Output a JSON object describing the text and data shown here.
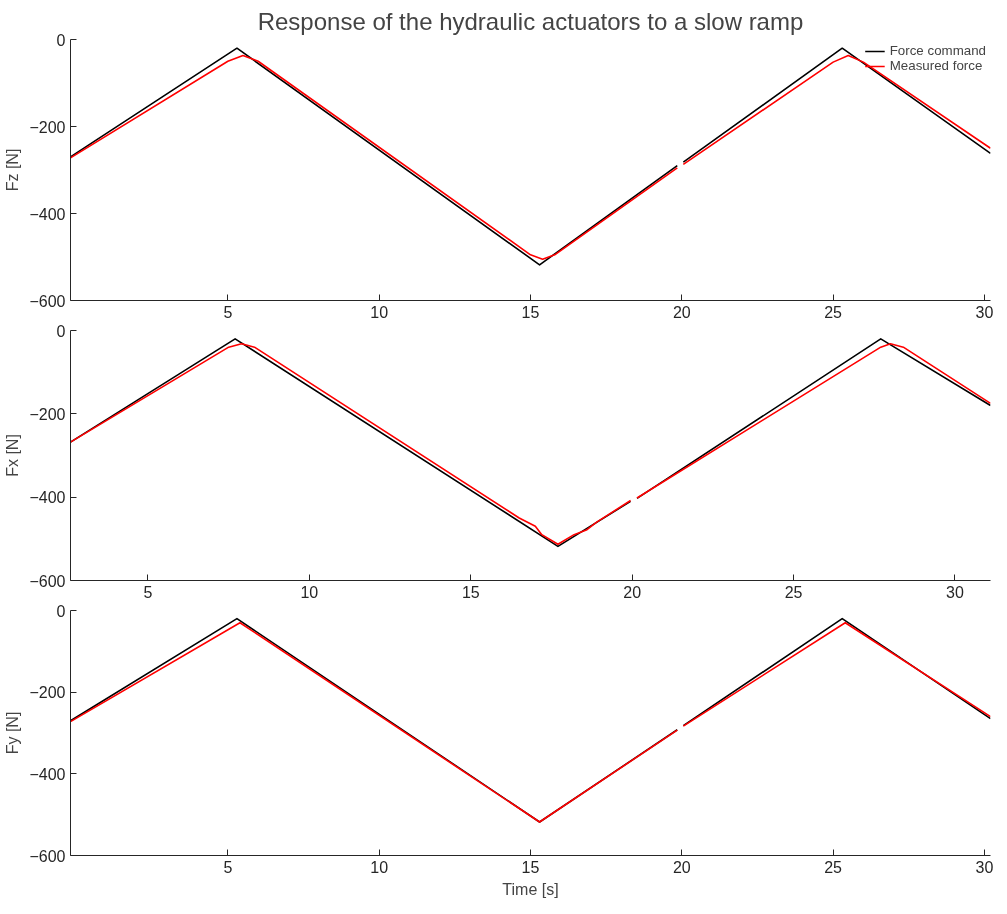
{
  "chart_data": [
    {
      "type": "line",
      "title": "Response of the hydraulic actuators to a slow ramp",
      "ylabel": "Fz [N]",
      "legend": "top right",
      "grid": false,
      "line_style": "solid",
      "xlim": [
        -0.2,
        30.2
      ],
      "ylim": [
        -600,
        0
      ],
      "xticks": [
        5,
        10,
        15,
        20,
        25,
        30
      ],
      "yticks": [
        -600,
        -400,
        -200,
        0
      ],
      "series": [
        {
          "name": "Force command",
          "color": "#000000",
          "x": [
            -0.2,
            5.3,
            15.3,
            19.85,
            19.95,
            20.05,
            25.3,
            30.2
          ],
          "values": [
            -270,
            -20,
            -518,
            -290,
            null,
            -282,
            -20,
            -262
          ]
        },
        {
          "name": "Measured force",
          "color": "#ff0000",
          "x": [
            -0.2,
            5.0,
            5.5,
            6.0,
            15.0,
            15.4,
            15.8,
            19.85,
            19.95,
            20.05,
            25.0,
            25.5,
            26.0,
            30.2
          ],
          "values": [
            -272,
            -50,
            -37,
            -50,
            -495,
            -505,
            -495,
            -295,
            null,
            -287,
            -52,
            -37,
            -52,
            -250
          ]
        }
      ]
    },
    {
      "type": "line",
      "ylabel": "Fx [N]",
      "grid": false,
      "line_style": "solid",
      "xlim": [
        2.6,
        31.1
      ],
      "ylim": [
        -600,
        0
      ],
      "xticks": [
        5,
        10,
        15,
        20,
        25,
        30
      ],
      "yticks": [
        -600,
        -400,
        -200,
        0
      ],
      "series": [
        {
          "color": "#000000",
          "x": [
            2.6,
            7.7,
            17.7,
            19.95,
            20.05,
            20.15,
            27.7,
            31.1
          ],
          "values": [
            -268,
            -20,
            -518,
            -410,
            null,
            -403,
            -20,
            -180
          ]
        },
        {
          "color": "#ff0000",
          "x": [
            2.6,
            7.5,
            7.9,
            8.3,
            16.5,
            17.0,
            17.2,
            17.7,
            18.2,
            18.6,
            18.9,
            19.95,
            20.05,
            20.15,
            27.7,
            28.0,
            28.4,
            31.1
          ],
          "values": [
            -268,
            -40,
            -32,
            -40,
            -450,
            -470,
            -490,
            -513,
            -490,
            -478,
            -460,
            -408,
            null,
            -402,
            -40,
            -32,
            -40,
            -175
          ]
        }
      ]
    },
    {
      "type": "line",
      "ylabel": "Fy [N]",
      "xlabel": "Time [s]",
      "grid": false,
      "line_style": "solid",
      "xlim": [
        -0.2,
        30.2
      ],
      "ylim": [
        -600,
        0
      ],
      "xticks": [
        5,
        10,
        15,
        20,
        25,
        30
      ],
      "yticks": [
        -600,
        -400,
        -200,
        0
      ],
      "series": [
        {
          "color": "#000000",
          "x": [
            -0.2,
            5.3,
            15.3,
            19.85,
            19.95,
            20.05,
            25.3,
            30.2
          ],
          "values": [
            -270,
            -20,
            -518,
            -292,
            null,
            -282,
            -20,
            -265
          ]
        },
        {
          "color": "#ff0000",
          "x": [
            -0.2,
            5.4,
            15.3,
            19.85,
            19.95,
            20.05,
            25.4,
            30.2
          ],
          "values": [
            -272,
            -30,
            -518,
            -293,
            null,
            -283,
            -30,
            -260
          ]
        }
      ]
    }
  ]
}
